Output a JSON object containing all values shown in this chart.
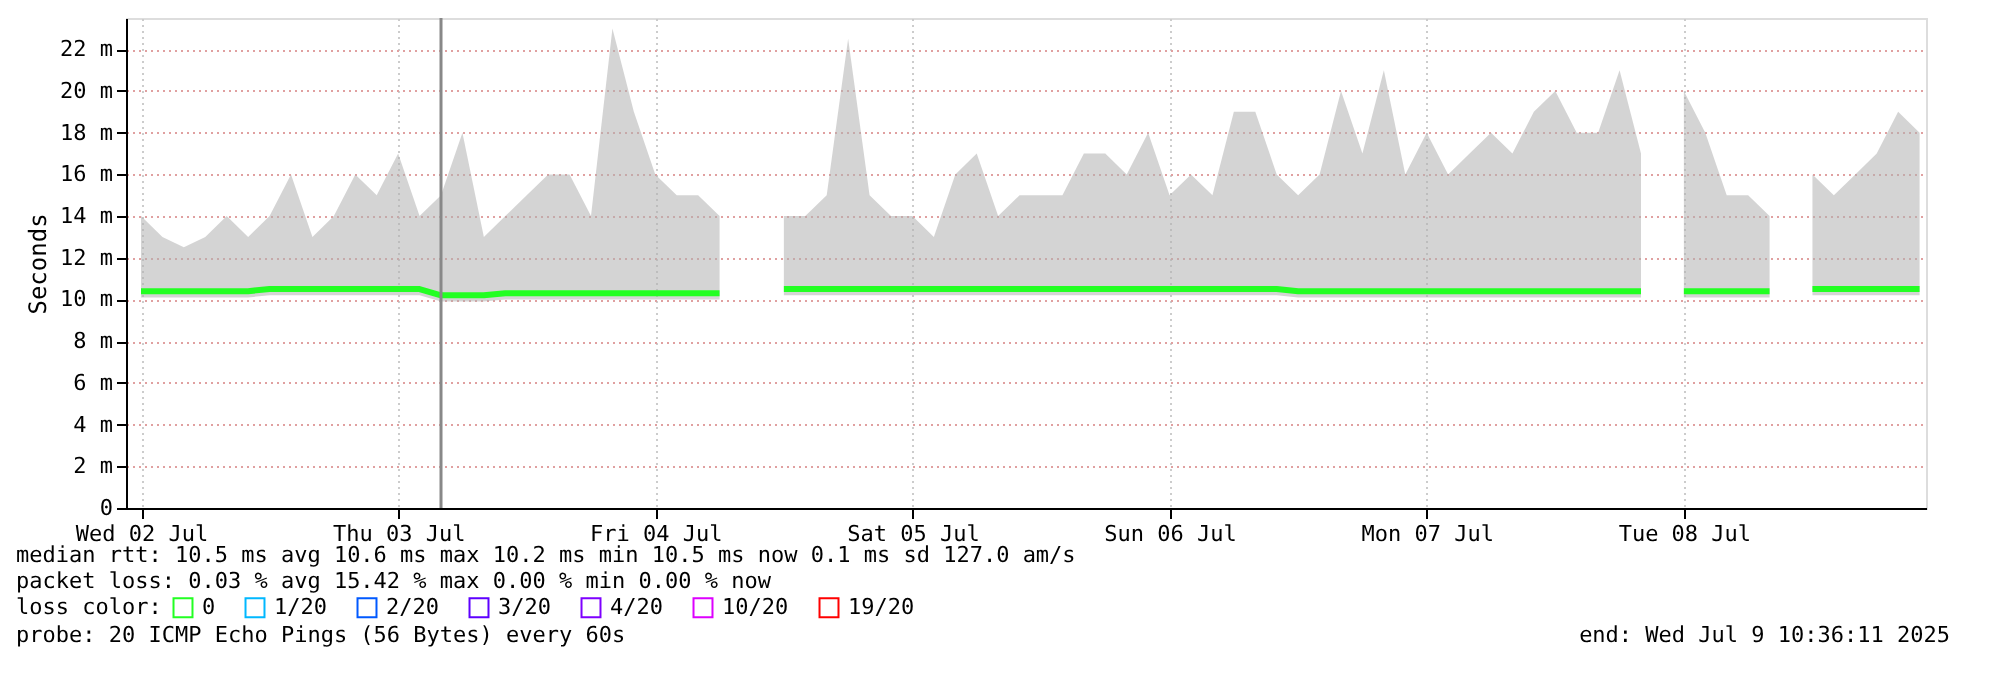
{
  "chart_data": {
    "type": "line",
    "ylabel": "Seconds",
    "legend_title": "loss color:",
    "legend": "bottom left",
    "grid": true,
    "marker": "none",
    "line_style": "solid",
    "xlim": [
      "2025-07-02T10:36",
      "2025-07-09T10:36"
    ],
    "xticks": [
      {
        "value": "2025-07-02T12:00",
        "label": "Wed 02 Jul"
      },
      {
        "value": "2025-07-03T12:00",
        "label": "Thu 03 Jul"
      },
      {
        "value": "2025-07-04T12:00",
        "label": "Fri 04 Jul"
      },
      {
        "value": "2025-07-05T12:00",
        "label": "Sat 05 Jul"
      },
      {
        "value": "2025-07-06T12:00",
        "label": "Sun 06 Jul"
      },
      {
        "value": "2025-07-07T12:00",
        "label": "Mon 07 Jul"
      },
      {
        "value": "2025-07-08T12:00",
        "label": "Tue 08 Jul"
      }
    ],
    "ylim": [
      0,
      23.5
    ],
    "yticks": [
      0,
      {
        "value": 2,
        "label": "2 m"
      },
      {
        "value": 4,
        "label": "4 m"
      },
      {
        "value": 6,
        "label": "6 m"
      },
      {
        "value": 8,
        "label": "8 m"
      },
      {
        "value": 10,
        "label": "10 m"
      },
      {
        "value": 12,
        "label": "12 m"
      },
      {
        "value": 14,
        "label": "14 m"
      },
      {
        "value": 16,
        "label": "16 m"
      },
      {
        "value": 18,
        "label": "18 m"
      },
      {
        "value": 20,
        "label": "20 m"
      },
      {
        "value": 22,
        "label": "22 m"
      }
    ],
    "ref_lines": [
      {
        "axis": "x",
        "value": "2025-07-03T16:00",
        "color": "#888888"
      }
    ],
    "x": [
      "2025-07-02T12:00",
      "2025-07-02T14:00",
      "2025-07-02T16:00",
      "2025-07-02T18:00",
      "2025-07-02T20:00",
      "2025-07-02T22:00",
      "2025-07-03T00:00",
      "2025-07-03T02:00",
      "2025-07-03T04:00",
      "2025-07-03T06:00",
      "2025-07-03T08:00",
      "2025-07-03T10:00",
      "2025-07-03T12:00",
      "2025-07-03T14:00",
      "2025-07-03T16:00",
      "2025-07-03T18:00",
      "2025-07-03T20:00",
      "2025-07-03T22:00",
      "2025-07-04T00:00",
      "2025-07-04T02:00",
      "2025-07-04T04:00",
      "2025-07-04T06:00",
      "2025-07-04T08:00",
      "2025-07-04T10:00",
      "2025-07-04T12:00",
      "2025-07-04T14:00",
      "2025-07-04T16:00",
      "2025-07-04T18:00",
      "2025-07-04T20:00",
      "2025-07-04T22:00",
      "2025-07-05T00:00",
      "2025-07-05T02:00",
      "2025-07-05T04:00",
      "2025-07-05T06:00",
      "2025-07-05T08:00",
      "2025-07-05T10:00",
      "2025-07-05T12:00",
      "2025-07-05T14:00",
      "2025-07-05T16:00",
      "2025-07-05T18:00",
      "2025-07-05T20:00",
      "2025-07-05T22:00",
      "2025-07-06T00:00",
      "2025-07-06T02:00",
      "2025-07-06T04:00",
      "2025-07-06T06:00",
      "2025-07-06T08:00",
      "2025-07-06T10:00",
      "2025-07-06T12:00",
      "2025-07-06T14:00",
      "2025-07-06T16:00",
      "2025-07-06T18:00",
      "2025-07-06T20:00",
      "2025-07-06T22:00",
      "2025-07-07T00:00",
      "2025-07-07T02:00",
      "2025-07-07T04:00",
      "2025-07-07T06:00",
      "2025-07-07T08:00",
      "2025-07-07T10:00",
      "2025-07-07T12:00",
      "2025-07-07T14:00",
      "2025-07-07T16:00",
      "2025-07-07T18:00",
      "2025-07-07T20:00",
      "2025-07-07T22:00",
      "2025-07-08T00:00",
      "2025-07-08T02:00",
      "2025-07-08T04:00",
      "2025-07-08T06:00",
      "2025-07-08T08:00",
      "2025-07-08T10:00",
      "2025-07-08T12:00",
      "2025-07-08T14:00",
      "2025-07-08T16:00",
      "2025-07-08T18:00",
      "2025-07-08T20:00",
      "2025-07-08T22:00",
      "2025-07-09T00:00",
      "2025-07-09T02:00",
      "2025-07-09T04:00",
      "2025-07-09T06:00",
      "2025-07-09T08:00",
      "2025-07-09T10:00"
    ],
    "series": [
      {
        "name": "0",
        "color": "#22ff22",
        "values": [
          10.4,
          10.4,
          10.4,
          10.4,
          10.4,
          10.4,
          10.5,
          10.5,
          10.5,
          10.5,
          10.5,
          10.5,
          10.5,
          10.5,
          10.2,
          10.2,
          10.2,
          10.3,
          10.3,
          10.3,
          10.3,
          10.3,
          10.3,
          10.3,
          10.3,
          10.3,
          10.3,
          10.3,
          null,
          null,
          10.5,
          10.5,
          10.5,
          10.5,
          10.5,
          10.5,
          10.5,
          10.5,
          10.5,
          10.5,
          10.5,
          10.5,
          10.5,
          10.5,
          10.5,
          10.5,
          10.5,
          10.5,
          10.5,
          10.5,
          10.5,
          10.5,
          10.5,
          10.5,
          10.4,
          10.4,
          10.4,
          10.4,
          10.4,
          10.4,
          10.4,
          10.4,
          10.4,
          10.4,
          10.4,
          10.4,
          10.4,
          10.4,
          10.4,
          10.4,
          10.4,
          null,
          10.4,
          10.4,
          10.4,
          10.4,
          10.4,
          null,
          10.5,
          10.5,
          10.5,
          10.5,
          10.5,
          10.5
        ],
        "lower": [
          10.1,
          10.1,
          10.1,
          10.1,
          10.1,
          10.1,
          10.2,
          10.2,
          10.2,
          10.2,
          10.2,
          10.2,
          10.2,
          10.2,
          9.9,
          9.9,
          9.9,
          10.0,
          10.0,
          10.0,
          10.0,
          10.0,
          10.0,
          10.0,
          10.0,
          10.0,
          10.0,
          10.0,
          null,
          null,
          10.2,
          10.2,
          10.2,
          10.2,
          10.2,
          10.2,
          10.2,
          10.2,
          10.2,
          10.2,
          10.2,
          10.2,
          10.2,
          10.2,
          10.2,
          10.2,
          10.2,
          10.2,
          10.2,
          10.2,
          10.2,
          10.2,
          10.2,
          10.2,
          10.1,
          10.1,
          10.1,
          10.1,
          10.1,
          10.1,
          10.1,
          10.1,
          10.1,
          10.1,
          10.1,
          10.1,
          10.1,
          10.1,
          10.1,
          10.1,
          10.1,
          null,
          10.1,
          10.1,
          10.1,
          10.1,
          10.1,
          null,
          10.2,
          10.2,
          10.2,
          10.2,
          10.2,
          10.2
        ],
        "upper": [
          14,
          13,
          12.5,
          13,
          14,
          13,
          14,
          16,
          13,
          14,
          16,
          15,
          17,
          14,
          15,
          18,
          13,
          14,
          15,
          16,
          16,
          14,
          23,
          19,
          16,
          15,
          15,
          14,
          null,
          null,
          14,
          14,
          15,
          22.5,
          15,
          14,
          14,
          13,
          16,
          17,
          14,
          15,
          15,
          15,
          17,
          17,
          16,
          18,
          15,
          16,
          15,
          19,
          19,
          16,
          15,
          16,
          20,
          17,
          21,
          16,
          18,
          16,
          17,
          18,
          17,
          19,
          20,
          18,
          18,
          21,
          17,
          null,
          20,
          18,
          15,
          15,
          14,
          null,
          16,
          15,
          16,
          17,
          19,
          18
        ]
      },
      {
        "name": "1/20",
        "color": "#00b8ff",
        "values": [
          null,
          null,
          null,
          null,
          null,
          null,
          null,
          null,
          null,
          null,
          null,
          null,
          null,
          null,
          null,
          null,
          null,
          null,
          null,
          null,
          null,
          null,
          null,
          null,
          null,
          null,
          null,
          null,
          null,
          null,
          null,
          null,
          null,
          null,
          null,
          null,
          null,
          null,
          null,
          null,
          null,
          null,
          null,
          null,
          null,
          null,
          null,
          null,
          null,
          null,
          null,
          null,
          null,
          null,
          null,
          null,
          null,
          null,
          null,
          null,
          null,
          null,
          null,
          null,
          null,
          null,
          null,
          null,
          null,
          null,
          null,
          null,
          null,
          null,
          null,
          null,
          null,
          null,
          null,
          null,
          null,
          null,
          null,
          null
        ]
      },
      {
        "name": "2/20",
        "color": "#0059ff",
        "values": [
          null,
          null,
          null,
          null,
          null,
          null,
          null,
          null,
          null,
          null,
          null,
          null,
          null,
          null,
          null,
          null,
          null,
          null,
          null,
          null,
          null,
          null,
          null,
          null,
          null,
          null,
          null,
          null,
          null,
          null,
          null,
          null,
          null,
          null,
          null,
          null,
          null,
          null,
          null,
          null,
          null,
          null,
          null,
          null,
          null,
          null,
          null,
          null,
          null,
          null,
          null,
          null,
          null,
          null,
          null,
          null,
          null,
          null,
          null,
          null,
          null,
          null,
          null,
          null,
          null,
          null,
          null,
          null,
          null,
          null,
          null,
          null,
          null,
          null,
          null,
          null,
          null,
          null,
          null,
          null,
          null,
          null,
          null,
          null
        ]
      },
      {
        "name": "3/20",
        "color": "#5e00ff",
        "values": [
          null,
          null,
          null,
          null,
          null,
          null,
          null,
          null,
          null,
          null,
          null,
          null,
          null,
          null,
          null,
          null,
          null,
          null,
          null,
          null,
          null,
          null,
          null,
          null,
          null,
          null,
          null,
          null,
          null,
          null,
          null,
          null,
          null,
          null,
          null,
          null,
          null,
          null,
          null,
          null,
          null,
          null,
          null,
          null,
          null,
          null,
          null,
          null,
          null,
          null,
          null,
          null,
          null,
          null,
          null,
          null,
          null,
          null,
          null,
          null,
          null,
          null,
          null,
          null,
          null,
          null,
          null,
          null,
          null,
          null,
          null,
          null,
          null,
          null,
          null,
          null,
          null,
          null,
          null,
          null,
          null,
          null,
          null,
          null
        ]
      },
      {
        "name": "4/20",
        "color": "#7e00ff",
        "values": [
          null,
          null,
          null,
          null,
          null,
          null,
          null,
          null,
          null,
          null,
          null,
          null,
          null,
          null,
          null,
          null,
          null,
          null,
          null,
          null,
          null,
          null,
          null,
          null,
          null,
          null,
          null,
          null,
          null,
          null,
          null,
          null,
          null,
          null,
          null,
          null,
          null,
          null,
          null,
          null,
          null,
          null,
          null,
          null,
          null,
          null,
          null,
          null,
          null,
          null,
          null,
          null,
          null,
          null,
          null,
          null,
          null,
          null,
          null,
          null,
          null,
          null,
          null,
          null,
          null,
          null,
          null,
          null,
          null,
          null,
          null,
          null,
          null,
          null,
          null,
          null,
          null,
          null,
          null,
          null,
          null,
          null,
          null,
          null
        ]
      },
      {
        "name": "10/20",
        "color": "#dd00ff",
        "values": [
          null,
          null,
          null,
          null,
          null,
          null,
          null,
          null,
          null,
          null,
          null,
          null,
          null,
          null,
          null,
          null,
          null,
          null,
          null,
          null,
          null,
          null,
          null,
          null,
          null,
          null,
          null,
          null,
          null,
          null,
          null,
          null,
          null,
          null,
          null,
          null,
          null,
          null,
          null,
          null,
          null,
          null,
          null,
          null,
          null,
          null,
          null,
          null,
          null,
          null,
          null,
          null,
          null,
          null,
          null,
          null,
          null,
          null,
          null,
          null,
          null,
          null,
          null,
          null,
          null,
          null,
          null,
          null,
          null,
          null,
          null,
          null,
          null,
          null,
          null,
          null,
          null,
          null,
          null,
          null,
          null,
          null,
          null,
          null
        ]
      },
      {
        "name": "19/20",
        "color": "#ff0000",
        "values": [
          null,
          null,
          null,
          null,
          null,
          null,
          null,
          null,
          null,
          null,
          null,
          null,
          null,
          null,
          null,
          null,
          null,
          null,
          null,
          null,
          null,
          null,
          null,
          null,
          null,
          null,
          null,
          null,
          null,
          null,
          null,
          null,
          null,
          null,
          null,
          null,
          null,
          null,
          null,
          null,
          null,
          null,
          null,
          null,
          null,
          null,
          null,
          null,
          null,
          null,
          null,
          null,
          null,
          null,
          null,
          null,
          null,
          null,
          null,
          null,
          null,
          null,
          null,
          null,
          null,
          null,
          null,
          null,
          null,
          null,
          null,
          null,
          null,
          null,
          null,
          null,
          null,
          null,
          null,
          null,
          null,
          null,
          null,
          null
        ]
      }
    ],
    "annotations": [
      "median rtt:  10.5 ms avg  10.6 ms max  10.2 ms min  10.5 ms now  0.1 ms sd  127.0   am/s",
      "packet loss: 0.03 % avg  15.42 % max  0.00 % min  0.00 % now",
      "probe:       20 ICMP Echo Pings (56 Bytes) every 60s",
      "end: Wed Jul  9 10:36:11 2025"
    ]
  }
}
